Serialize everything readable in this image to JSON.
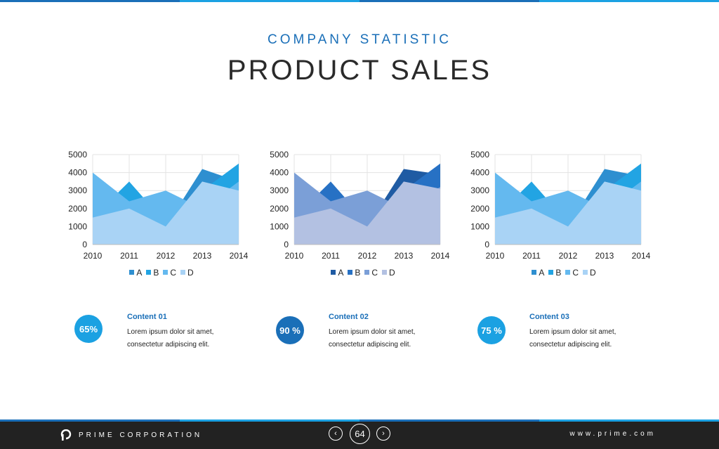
{
  "header": {
    "eyebrow": "COMPANY STATISTIC",
    "title": "PRODUCT SALES"
  },
  "colors": {
    "topbar": [
      "#1a6fb8",
      "#1ba1e2",
      "#1a6fb8",
      "#1ba1e2"
    ],
    "circle_light": "#1ba1e2",
    "circle_dark": "#1a6fb8"
  },
  "chart_data": [
    {
      "type": "area",
      "x": [
        "2010",
        "2011",
        "2012",
        "2013",
        "2014"
      ],
      "ylim": [
        0,
        5000
      ],
      "yticks": [
        "0",
        "1000",
        "2000",
        "3000",
        "4000",
        "5000"
      ],
      "legend_position": "bottom",
      "grid": true,
      "series": [
        {
          "name": "A",
          "values": [
            2000,
            2500,
            1000,
            4200,
            3500
          ],
          "color": "#2e8fd0"
        },
        {
          "name": "B",
          "values": [
            1500,
            3500,
            1200,
            3000,
            4500
          ],
          "color": "#22a4e3"
        },
        {
          "name": "C",
          "values": [
            4000,
            2400,
            3000,
            2000,
            3500
          ],
          "color": "#64b9ef"
        },
        {
          "name": "D",
          "values": [
            1500,
            2000,
            1000,
            3500,
            3000
          ],
          "color": "#a9d3f5"
        }
      ]
    },
    {
      "type": "area",
      "x": [
        "2010",
        "2011",
        "2012",
        "2013",
        "2014"
      ],
      "ylim": [
        0,
        5000
      ],
      "yticks": [
        "0",
        "1000",
        "2000",
        "3000",
        "4000",
        "5000"
      ],
      "legend_position": "bottom",
      "grid": true,
      "series": [
        {
          "name": "A",
          "values": [
            2000,
            2500,
            1000,
            4200,
            3900
          ],
          "color": "#1f5ba3"
        },
        {
          "name": "B",
          "values": [
            1500,
            3500,
            1200,
            3000,
            4500
          ],
          "color": "#2771c4"
        },
        {
          "name": "C",
          "values": [
            4000,
            2400,
            3000,
            2000,
            3200
          ],
          "color": "#7b9fd7"
        },
        {
          "name": "D",
          "values": [
            1500,
            2000,
            1000,
            3500,
            3100
          ],
          "color": "#b3c1e2"
        }
      ]
    },
    {
      "type": "area",
      "x": [
        "2010",
        "2011",
        "2012",
        "2013",
        "2014"
      ],
      "ylim": [
        0,
        5000
      ],
      "yticks": [
        "0",
        "1000",
        "2000",
        "3000",
        "4000",
        "5000"
      ],
      "legend_position": "bottom",
      "grid": true,
      "series": [
        {
          "name": "A",
          "values": [
            2000,
            2500,
            1000,
            4200,
            3800
          ],
          "color": "#2e8fd0"
        },
        {
          "name": "B",
          "values": [
            1500,
            3500,
            1200,
            3000,
            4500
          ],
          "color": "#22a4e3"
        },
        {
          "name": "C",
          "values": [
            4000,
            2400,
            3000,
            2000,
            3500
          ],
          "color": "#64b9ef"
        },
        {
          "name": "D",
          "values": [
            1500,
            2000,
            1000,
            3500,
            3000
          ],
          "color": "#a9d3f5"
        }
      ]
    }
  ],
  "stats": [
    {
      "percent": "65%",
      "title": "Content 01",
      "line1": "Lorem ipsum dolor sit amet,",
      "line2": "consectetur adipiscing elit."
    },
    {
      "percent": "90 %",
      "title": "Content 02",
      "line1": "Lorem ipsum dolor sit amet,",
      "line2": "consectetur adipiscing elit."
    },
    {
      "percent": "75 %",
      "title": "Content 03",
      "line1": "Lorem ipsum dolor sit amet,",
      "line2": "consectetur adipiscing elit."
    }
  ],
  "footer": {
    "brand": "PRIME CORPORATION",
    "page_number": "64",
    "prev_icon": "chevron-left-icon",
    "next_icon": "chevron-right-icon",
    "prev_glyph": "‹",
    "next_glyph": "›",
    "website": "www.prime.com"
  }
}
